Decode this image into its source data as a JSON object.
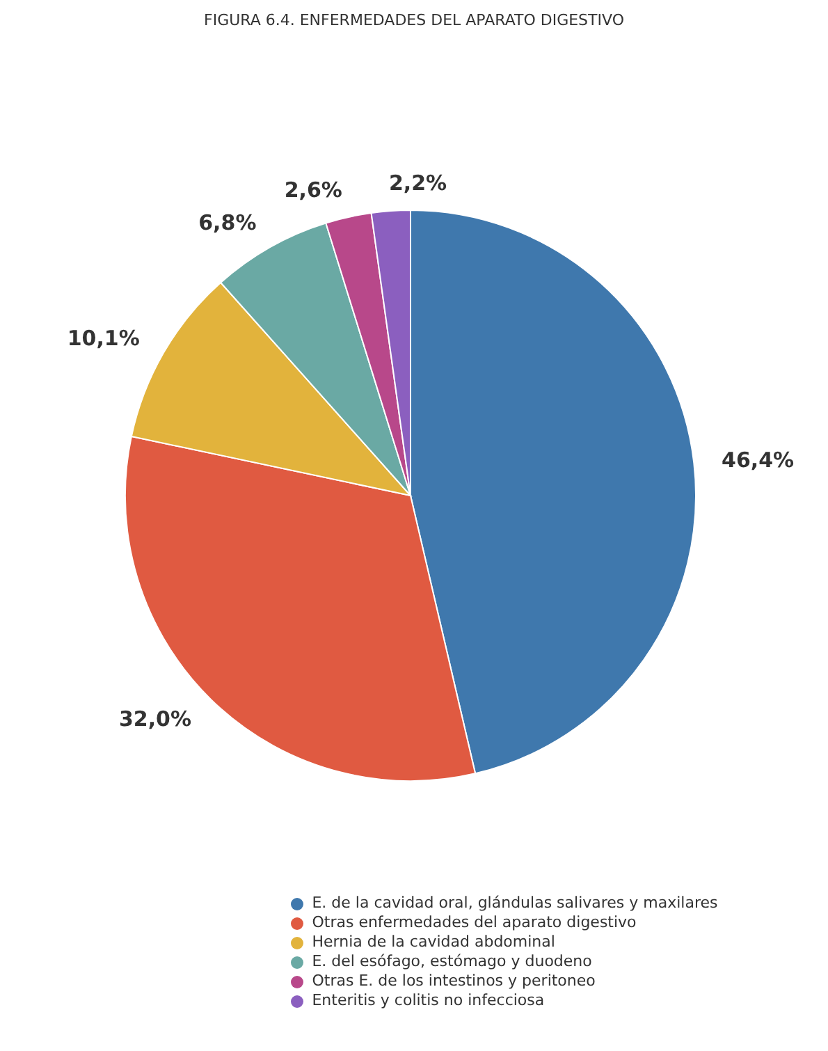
{
  "chart_data": {
    "type": "pie",
    "title": "FIGURA 6.4. ENFERMEDADES DEL APARATO DIGESTIVO",
    "categories": [
      "E. de la cavidad oral, glándulas salivares y maxilares",
      "Otras enfermedades del aparato digestivo",
      "Hernia de la cavidad abdominal",
      "E. del esófago, estómago y duodeno",
      "Otras E. de los intestinos y peritoneo",
      "Enteritis y colitis no infecciosa"
    ],
    "values": [
      46.4,
      32.0,
      10.1,
      6.8,
      2.6,
      2.2
    ],
    "value_labels": [
      "46,4%",
      "32,0%",
      "10,1%",
      "6,8%",
      "2,6%",
      "2,2%"
    ],
    "colors": [
      "#3f78ad",
      "#e05a41",
      "#e2b33c",
      "#6aa9a4",
      "#b8488a",
      "#8b5fbf"
    ],
    "legend": "bottom"
  }
}
